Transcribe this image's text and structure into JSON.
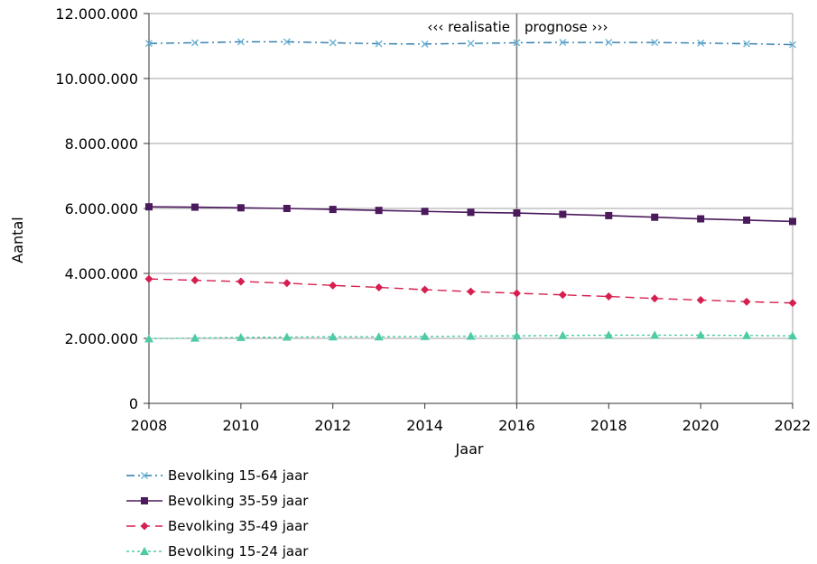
{
  "chart_data": {
    "type": "line",
    "xlabel": "Jaar",
    "ylabel": "Aantal",
    "xlim": [
      2008,
      2022
    ],
    "ylim": [
      0,
      12000000
    ],
    "x_ticks": [
      2008,
      2010,
      2012,
      2014,
      2016,
      2018,
      2020,
      2022
    ],
    "y_ticks": [
      0,
      2000000,
      4000000,
      6000000,
      8000000,
      10000000,
      12000000
    ],
    "y_tick_labels": [
      "0",
      "2.000.000",
      "4.000.000",
      "6.000.000",
      "8.000.000",
      "10.000.000",
      "12.000.000"
    ],
    "grid": "horizontal",
    "legend_position": "bottom-left",
    "divider_x": 2016,
    "annotations": {
      "left": "‹‹‹  realisatie",
      "right": "prognose ›››"
    },
    "x": [
      2008,
      2009,
      2010,
      2011,
      2012,
      2013,
      2014,
      2015,
      2016,
      2017,
      2018,
      2019,
      2020,
      2021,
      2022
    ],
    "series": [
      {
        "name": "Bevolking 15-64 jaar",
        "color": "#2a78a8",
        "marker": "x",
        "dash": "dashdot",
        "values": [
          11080000,
          11100000,
          11130000,
          11130000,
          11100000,
          11070000,
          11060000,
          11080000,
          11100000,
          11110000,
          11110000,
          11110000,
          11090000,
          11070000,
          11040000
        ]
      },
      {
        "name": "Bevolking 35-59 jaar",
        "color": "#4b1a5c",
        "marker": "square",
        "dash": "solid",
        "values": [
          6050000,
          6040000,
          6020000,
          6000000,
          5970000,
          5940000,
          5910000,
          5880000,
          5860000,
          5820000,
          5780000,
          5730000,
          5680000,
          5640000,
          5600000
        ]
      },
      {
        "name": "Bevolking 35-49 jaar",
        "color": "#d61f4f",
        "marker": "diamond",
        "dash": "dashed",
        "values": [
          3830000,
          3790000,
          3750000,
          3700000,
          3630000,
          3570000,
          3500000,
          3440000,
          3390000,
          3340000,
          3290000,
          3230000,
          3180000,
          3130000,
          3090000
        ]
      },
      {
        "name": "Bevolking 15-24 jaar",
        "color": "#4ecba6",
        "marker": "triangle",
        "dash": "dotted",
        "values": [
          1990000,
          2010000,
          2030000,
          2040000,
          2050000,
          2050000,
          2060000,
          2070000,
          2080000,
          2090000,
          2100000,
          2100000,
          2100000,
          2090000,
          2080000
        ]
      }
    ]
  }
}
